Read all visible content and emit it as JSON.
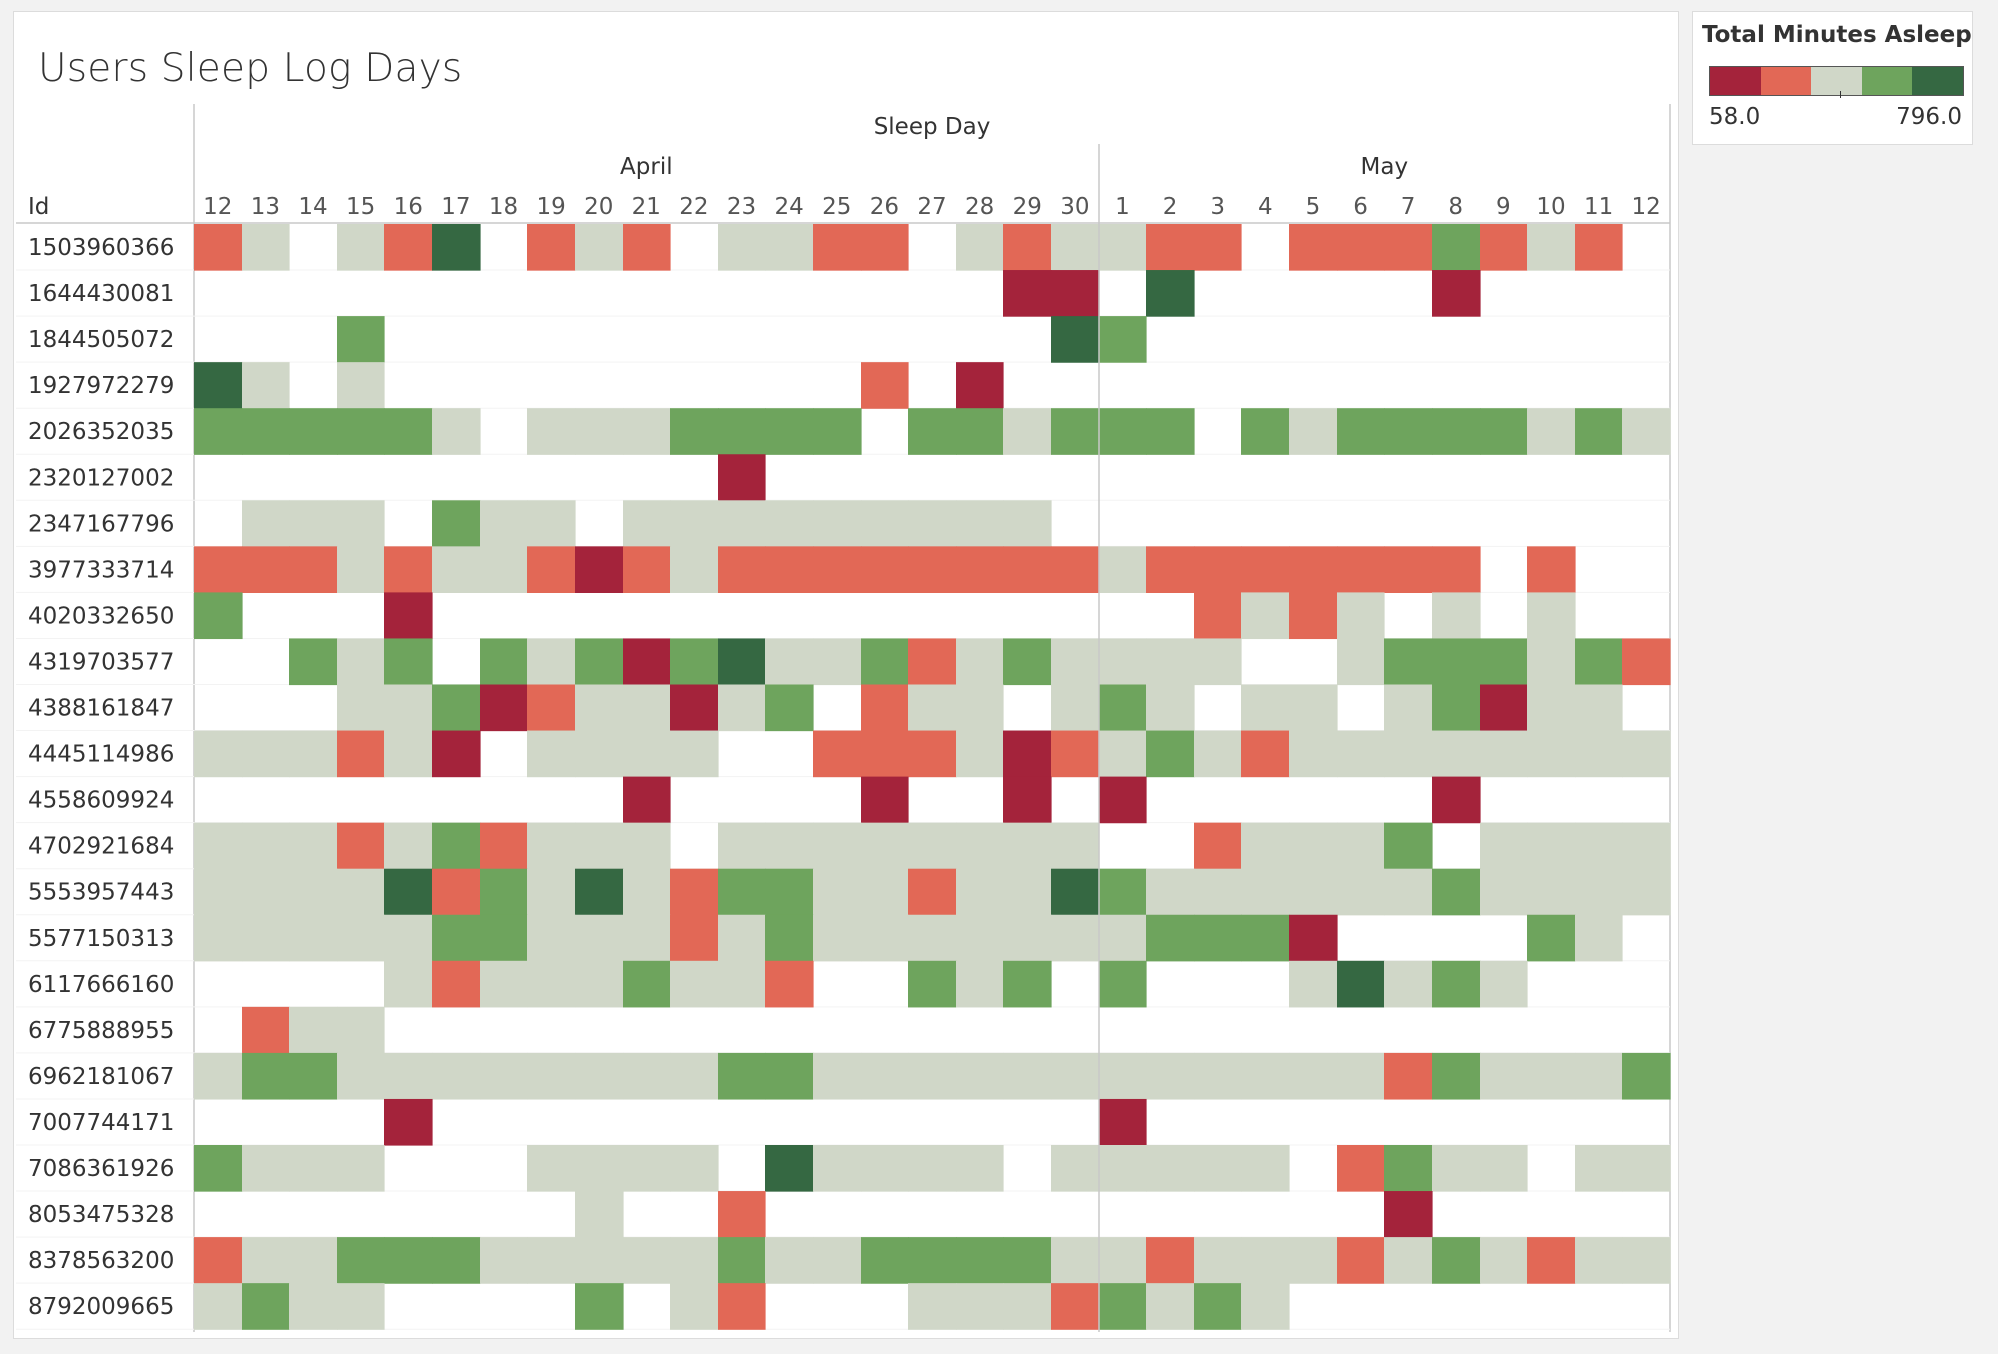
{
  "title": "Users Sleep Log Days",
  "legend": {
    "title": "Total Minutes Asleep",
    "min_label": "58.0",
    "max_label": "796.0",
    "colors": [
      "#a4233b",
      "#e26856",
      "#d0d7c8",
      "#6ea45d",
      "#356842"
    ]
  },
  "chart_data": {
    "type": "heatmap",
    "title": "Users Sleep Log Days",
    "x_title": "Sleep Day",
    "row_header": "Id",
    "month_groups": [
      {
        "label": "April",
        "days": [
          "12",
          "13",
          "14",
          "15",
          "16",
          "17",
          "18",
          "19",
          "20",
          "21",
          "22",
          "23",
          "24",
          "25",
          "26",
          "27",
          "28",
          "29",
          "30"
        ]
      },
      {
        "label": "May",
        "days": [
          "1",
          "2",
          "3",
          "4",
          "5",
          "6",
          "7",
          "8",
          "9",
          "10",
          "11",
          "12"
        ]
      }
    ],
    "color_range": [
      58.0,
      796.0
    ],
    "color_levels": "0=lowest (dark red) … 4=highest (dark green); null = no record",
    "rows": [
      {
        "id": "1503960366",
        "levels": [
          1,
          2,
          null,
          2,
          1,
          4,
          null,
          1,
          2,
          1,
          null,
          2,
          2,
          1,
          1,
          null,
          2,
          1,
          2,
          2,
          1,
          1,
          null,
          1,
          1,
          1,
          3,
          1,
          2,
          1,
          null
        ]
      },
      {
        "id": "1644430081",
        "levels": [
          null,
          null,
          null,
          null,
          null,
          null,
          null,
          null,
          null,
          null,
          null,
          null,
          null,
          null,
          null,
          null,
          null,
          0,
          0,
          null,
          4,
          null,
          null,
          null,
          null,
          null,
          0,
          null,
          null,
          null,
          null
        ]
      },
      {
        "id": "1844505072",
        "levels": [
          null,
          null,
          null,
          3,
          null,
          null,
          null,
          null,
          null,
          null,
          null,
          null,
          null,
          null,
          null,
          null,
          null,
          null,
          4,
          3,
          null,
          null,
          null,
          null,
          null,
          null,
          null,
          null,
          null,
          null,
          null
        ]
      },
      {
        "id": "1927972279",
        "levels": [
          4,
          2,
          null,
          2,
          null,
          null,
          null,
          null,
          null,
          null,
          null,
          null,
          null,
          null,
          1,
          null,
          0,
          null,
          null,
          null,
          null,
          null,
          null,
          null,
          null,
          null,
          null,
          null,
          null,
          null,
          null
        ]
      },
      {
        "id": "2026352035",
        "levels": [
          3,
          3,
          3,
          3,
          3,
          2,
          null,
          2,
          2,
          2,
          3,
          3,
          3,
          3,
          null,
          3,
          3,
          2,
          3,
          3,
          3,
          null,
          3,
          2,
          3,
          3,
          3,
          3,
          2,
          3,
          2
        ]
      },
      {
        "id": "2320127002",
        "levels": [
          null,
          null,
          null,
          null,
          null,
          null,
          null,
          null,
          null,
          null,
          null,
          0,
          null,
          null,
          null,
          null,
          null,
          null,
          null,
          null,
          null,
          null,
          null,
          null,
          null,
          null,
          null,
          null,
          null,
          null,
          null
        ]
      },
      {
        "id": "2347167796",
        "levels": [
          null,
          2,
          2,
          2,
          null,
          3,
          2,
          2,
          null,
          2,
          2,
          2,
          2,
          2,
          2,
          2,
          2,
          2,
          null,
          null,
          null,
          null,
          null,
          null,
          null,
          null,
          null,
          null,
          null,
          null,
          null
        ]
      },
      {
        "id": "3977333714",
        "levels": [
          1,
          1,
          1,
          2,
          1,
          2,
          2,
          1,
          0,
          1,
          2,
          1,
          1,
          1,
          1,
          1,
          1,
          1,
          1,
          2,
          1,
          1,
          1,
          1,
          1,
          1,
          1,
          null,
          1,
          null,
          null
        ]
      },
      {
        "id": "4020332650",
        "levels": [
          3,
          null,
          null,
          null,
          0,
          null,
          null,
          null,
          null,
          null,
          null,
          null,
          null,
          null,
          null,
          null,
          null,
          null,
          null,
          null,
          null,
          1,
          2,
          1,
          2,
          null,
          2,
          null,
          2,
          null,
          null
        ]
      },
      {
        "id": "4319703577",
        "levels": [
          null,
          null,
          3,
          2,
          3,
          null,
          3,
          2,
          3,
          0,
          3,
          4,
          2,
          2,
          3,
          1,
          2,
          3,
          2,
          2,
          2,
          2,
          null,
          null,
          2,
          3,
          3,
          3,
          2,
          3,
          1
        ]
      },
      {
        "id": "4388161847",
        "levels": [
          null,
          null,
          null,
          2,
          2,
          3,
          0,
          1,
          2,
          2,
          0,
          2,
          3,
          null,
          1,
          2,
          2,
          null,
          2,
          3,
          2,
          null,
          2,
          2,
          null,
          2,
          3,
          0,
          2,
          2,
          null
        ]
      },
      {
        "id": "4445114986",
        "levels": [
          2,
          2,
          2,
          1,
          2,
          0,
          null,
          2,
          2,
          2,
          2,
          null,
          null,
          1,
          1,
          1,
          2,
          0,
          1,
          2,
          3,
          2,
          1,
          2,
          2,
          2,
          2,
          2,
          2,
          2,
          2
        ]
      },
      {
        "id": "4558609924",
        "levels": [
          null,
          null,
          null,
          null,
          null,
          null,
          null,
          null,
          null,
          0,
          null,
          null,
          null,
          null,
          0,
          null,
          null,
          0,
          null,
          0,
          null,
          null,
          null,
          null,
          null,
          null,
          0,
          null,
          null,
          null,
          null
        ]
      },
      {
        "id": "4702921684",
        "levels": [
          2,
          2,
          2,
          1,
          2,
          3,
          1,
          2,
          2,
          2,
          null,
          2,
          2,
          2,
          2,
          2,
          2,
          2,
          2,
          null,
          null,
          1,
          2,
          2,
          2,
          3,
          null,
          2,
          2,
          2,
          2
        ]
      },
      {
        "id": "5553957443",
        "levels": [
          2,
          2,
          2,
          2,
          4,
          1,
          3,
          2,
          4,
          2,
          1,
          3,
          3,
          2,
          2,
          1,
          2,
          2,
          4,
          3,
          2,
          2,
          2,
          2,
          2,
          2,
          3,
          2,
          2,
          2,
          2
        ]
      },
      {
        "id": "5577150313",
        "levels": [
          2,
          2,
          2,
          2,
          2,
          3,
          3,
          2,
          2,
          2,
          1,
          2,
          3,
          2,
          2,
          2,
          2,
          2,
          2,
          2,
          3,
          3,
          3,
          0,
          null,
          null,
          null,
          null,
          3,
          2,
          null
        ]
      },
      {
        "id": "6117666160",
        "levels": [
          null,
          null,
          null,
          null,
          2,
          1,
          2,
          2,
          2,
          3,
          2,
          2,
          1,
          null,
          null,
          3,
          2,
          3,
          null,
          3,
          null,
          null,
          null,
          2,
          4,
          2,
          3,
          2,
          null,
          null,
          null
        ]
      },
      {
        "id": "6775888955",
        "levels": [
          null,
          1,
          2,
          2,
          null,
          null,
          null,
          null,
          null,
          null,
          null,
          null,
          null,
          null,
          null,
          null,
          null,
          null,
          null,
          null,
          null,
          null,
          null,
          null,
          null,
          null,
          null,
          null,
          null,
          null,
          null
        ]
      },
      {
        "id": "6962181067",
        "levels": [
          2,
          3,
          3,
          2,
          2,
          2,
          2,
          2,
          2,
          2,
          2,
          3,
          3,
          2,
          2,
          2,
          2,
          2,
          2,
          2,
          2,
          2,
          2,
          2,
          2,
          1,
          3,
          2,
          2,
          2,
          3
        ]
      },
      {
        "id": "7007744171",
        "levels": [
          null,
          null,
          null,
          null,
          0,
          null,
          null,
          null,
          null,
          null,
          null,
          null,
          null,
          null,
          null,
          null,
          null,
          null,
          null,
          0,
          null,
          null,
          null,
          null,
          null,
          null,
          null,
          null,
          null,
          null,
          null
        ]
      },
      {
        "id": "7086361926",
        "levels": [
          3,
          2,
          2,
          2,
          null,
          null,
          null,
          2,
          2,
          2,
          2,
          null,
          4,
          2,
          2,
          2,
          2,
          null,
          2,
          2,
          2,
          2,
          2,
          null,
          1,
          3,
          2,
          2,
          null,
          2,
          2
        ]
      },
      {
        "id": "8053475328",
        "levels": [
          null,
          null,
          null,
          null,
          null,
          null,
          null,
          null,
          2,
          null,
          null,
          1,
          null,
          null,
          null,
          null,
          null,
          null,
          null,
          null,
          null,
          null,
          null,
          null,
          null,
          0,
          null,
          null,
          null,
          null,
          null
        ]
      },
      {
        "id": "8378563200",
        "levels": [
          1,
          2,
          2,
          3,
          3,
          3,
          2,
          2,
          2,
          2,
          2,
          3,
          2,
          2,
          3,
          3,
          3,
          3,
          2,
          2,
          1,
          2,
          2,
          2,
          1,
          2,
          3,
          2,
          1,
          2,
          2
        ]
      },
      {
        "id": "8792009665",
        "levels": [
          2,
          3,
          2,
          2,
          null,
          null,
          null,
          null,
          3,
          null,
          2,
          1,
          null,
          null,
          null,
          2,
          2,
          2,
          1,
          3,
          2,
          3,
          2,
          null,
          null,
          null,
          null,
          null,
          null,
          null,
          null
        ]
      }
    ]
  }
}
